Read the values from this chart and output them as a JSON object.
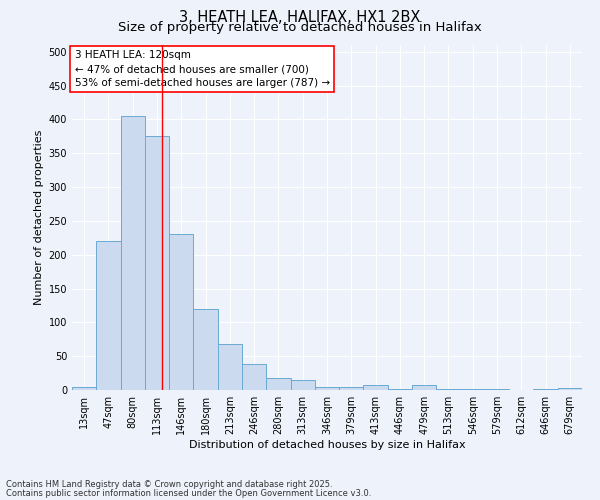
{
  "title1": "3, HEATH LEA, HALIFAX, HX1 2BX",
  "title2": "Size of property relative to detached houses in Halifax",
  "xlabel": "Distribution of detached houses by size in Halifax",
  "ylabel": "Number of detached properties",
  "bar_color": "#ccdaf0",
  "bar_edge_color": "#6aaad4",
  "categories": [
    "13sqm",
    "47sqm",
    "80sqm",
    "113sqm",
    "146sqm",
    "180sqm",
    "213sqm",
    "246sqm",
    "280sqm",
    "313sqm",
    "346sqm",
    "379sqm",
    "413sqm",
    "446sqm",
    "479sqm",
    "513sqm",
    "546sqm",
    "579sqm",
    "612sqm",
    "646sqm",
    "679sqm"
  ],
  "values": [
    5,
    220,
    405,
    375,
    230,
    120,
    68,
    38,
    18,
    15,
    5,
    5,
    7,
    2,
    7,
    2,
    2,
    2,
    0,
    2,
    3
  ],
  "red_line_bin": 3.22,
  "annotation_line1": "3 HEATH LEA: 120sqm",
  "annotation_line2": "← 47% of detached houses are smaller (700)",
  "annotation_line3": "53% of semi-detached houses are larger (787) →",
  "ylim": [
    0,
    510
  ],
  "yticks": [
    0,
    50,
    100,
    150,
    200,
    250,
    300,
    350,
    400,
    450,
    500
  ],
  "footnote1": "Contains HM Land Registry data © Crown copyright and database right 2025.",
  "footnote2": "Contains public sector information licensed under the Open Government Licence v3.0.",
  "bg_color": "#eef2fa",
  "grid_color": "#ffffff",
  "title1_fontsize": 10.5,
  "title2_fontsize": 9.5,
  "axis_label_fontsize": 8,
  "tick_fontsize": 7,
  "annotation_fontsize": 7.5,
  "footnote_fontsize": 6
}
